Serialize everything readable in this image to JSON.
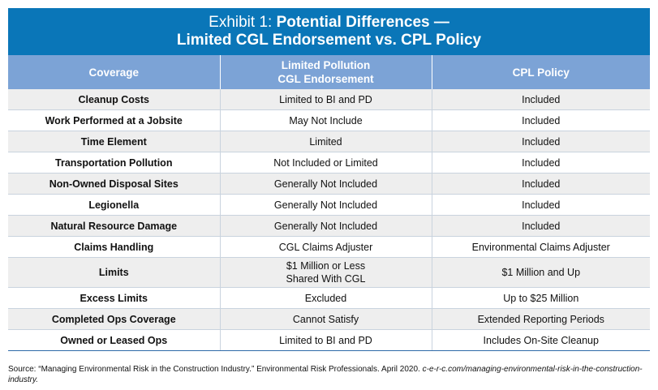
{
  "title": {
    "line1_prefix": "Exhibit 1: ",
    "line1_bold": "Potential Differences —",
    "line2": "Limited CGL Endorsement vs. CPL Policy"
  },
  "table": {
    "headers": {
      "coverage": "Coverage",
      "cgl_line1": "Limited Pollution",
      "cgl_line2": "CGL Endorsement",
      "cpl": "CPL Policy"
    },
    "rows": [
      {
        "coverage": "Cleanup Costs",
        "cgl": "Limited to BI and PD",
        "cpl": "Included"
      },
      {
        "coverage": "Work Performed at a Jobsite",
        "cgl": "May Not Include",
        "cpl": "Included"
      },
      {
        "coverage": "Time Element",
        "cgl": "Limited",
        "cpl": "Included"
      },
      {
        "coverage": "Transportation Pollution",
        "cgl": "Not Included or Limited",
        "cpl": "Included"
      },
      {
        "coverage": "Non-Owned Disposal Sites",
        "cgl": "Generally Not Included",
        "cpl": "Included"
      },
      {
        "coverage": "Legionella",
        "cgl": "Generally Not Included",
        "cpl": "Included"
      },
      {
        "coverage": "Natural Resource Damage",
        "cgl": "Generally Not Included",
        "cpl": "Included"
      },
      {
        "coverage": "Claims Handling",
        "cgl": "CGL Claims Adjuster",
        "cpl": "Environmental Claims Adjuster"
      },
      {
        "coverage": "Limits",
        "cgl": "$1 Million or Less",
        "cgl2": "Shared With CGL",
        "cpl": "$1 Million and Up"
      },
      {
        "coverage": "Excess Limits",
        "cgl": "Excluded",
        "cpl": "Up to $25 Million"
      },
      {
        "coverage": "Completed Ops Coverage",
        "cgl": "Cannot Satisfy",
        "cpl": "Extended Reporting Periods"
      },
      {
        "coverage": "Owned or Leased Ops",
        "cgl": "Limited to BI and PD",
        "cpl": "Includes On-Site Cleanup"
      }
    ]
  },
  "source": {
    "text": "Source: “Managing Environmental Risk in the Construction Industry.” Environmental Risk Professionals. April 2020. ",
    "url": "c-e-r-c.com/managing-environmental-risk-in-the-construction-industry."
  }
}
